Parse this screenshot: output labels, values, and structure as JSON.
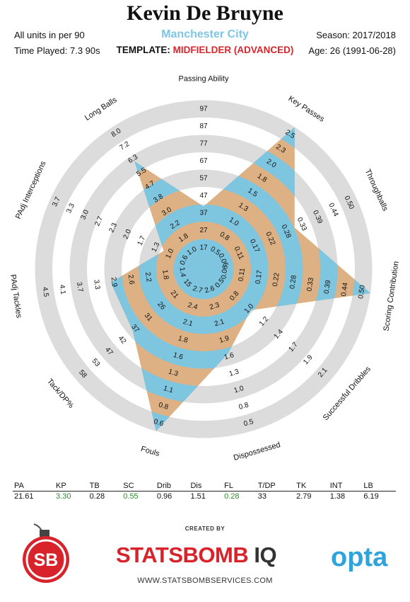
{
  "header": {
    "player_name": "Kevin De Bruyne",
    "team_name": "Manchester City",
    "units_note": "All units in per 90",
    "time_played": "Time Played: 7.3 90s",
    "template_label": "TEMPLATE:",
    "template_value": "MIDFIELDER (ADVANCED)",
    "season": "Season: 2017/2018",
    "age": "Age: 26 (1991-06-28)"
  },
  "colors": {
    "team": "#7ec5e6",
    "template": "#d7262c",
    "ring_gray": "#dcdcdc",
    "band_blue": "#7ec5e0",
    "band_tan": "#ddb183",
    "highlight_green": "#2e8b2e"
  },
  "chart_data": {
    "type": "radar",
    "ring_count": 5,
    "metrics": [
      {
        "label": "Passing Ability",
        "ticks": [
          "17",
          "27",
          "37",
          "47",
          "57",
          "67",
          "77",
          "87",
          "97"
        ],
        "value_fraction": 0.32
      },
      {
        "label": "Key Passes",
        "ticks": [
          "0.5",
          "0.8",
          "1.0",
          "1.3",
          "1.5",
          "1.8",
          "2.0",
          "2.3",
          "2.5"
        ],
        "value_fraction": 1.0
      },
      {
        "label": "Throughballs",
        "ticks": [
          "0.06",
          "0.11",
          "0.17",
          "0.22",
          "0.28",
          "0.33",
          "0.39",
          "0.44",
          "0.50"
        ],
        "value_fraction": 0.56
      },
      {
        "label": "Scoring Contribution",
        "ticks": [
          "0.06",
          "0.11",
          "0.17",
          "0.22",
          "0.28",
          "0.33",
          "0.39",
          "0.44",
          "0.50"
        ],
        "value_fraction": 1.0
      },
      {
        "label": "Successful Dribbles",
        "ticks": [
          "0.5",
          "0.8",
          "1.0",
          "1.2",
          "1.4",
          "1.7",
          "1.9",
          "2.1"
        ],
        "value_fraction": 0.32
      },
      {
        "label": "Dispossessed",
        "ticks": [
          "2.6",
          "2.3",
          "2.1",
          "1.9",
          "1.6",
          "1.3",
          "1.0",
          "0.8",
          "0.5"
        ],
        "value_fraction": 0.48
      },
      {
        "label": "Fouls",
        "ticks": [
          "2.7",
          "2.4",
          "2.1",
          "1.8",
          "1.6",
          "1.3",
          "1.1",
          "0.8",
          "0.6"
        ],
        "value_fraction": 1.0
      },
      {
        "label": "Tack/DP%",
        "ticks": [
          "15",
          "21",
          "26",
          "31",
          "37",
          "42",
          "47",
          "53",
          "58"
        ],
        "value_fraction": 0.52
      },
      {
        "label": "PAdj Tackles",
        "ticks": [
          "1.4",
          "1.8",
          "2.2",
          "2.6",
          "2.9",
          "3.3",
          "3.7",
          "4.1",
          "4.5"
        ],
        "value_fraction": 0.52
      },
      {
        "label": "PAdj Interceptions",
        "ticks": [
          "0.6",
          "1.0",
          "1.3",
          "1.7",
          "2.0",
          "2.3",
          "2.7",
          "3.0",
          "3.3",
          "3.7"
        ],
        "value_fraction": 0.2
      },
      {
        "label": "Long Balls",
        "ticks": [
          "1.0",
          "1.8",
          "2.2",
          "3.0",
          "3.8",
          "4.7",
          "5.5",
          "6.3",
          "7.2",
          "8.0"
        ],
        "value_fraction": 0.74
      }
    ]
  },
  "stats_table": {
    "headers": [
      "PA",
      "KP",
      "TB",
      "SC",
      "Drib",
      "Dis",
      "FL",
      "T/DP",
      "TK",
      "INT",
      "LB"
    ],
    "values": [
      "21.61",
      "3.30",
      "0.28",
      "0.55",
      "0.96",
      "1.51",
      "0.28",
      "33",
      "2.79",
      "1.38",
      "6.19"
    ],
    "highlight": [
      false,
      true,
      false,
      true,
      false,
      false,
      true,
      false,
      false,
      false,
      false
    ]
  },
  "footer": {
    "created_by": "CREATED BY",
    "brand_left": "STATSBOMB",
    "brand_right": "IQ",
    "brand_badge": "SB",
    "url": "WWW.STATSBOMBSERVICES.COM",
    "opta": "opta"
  }
}
